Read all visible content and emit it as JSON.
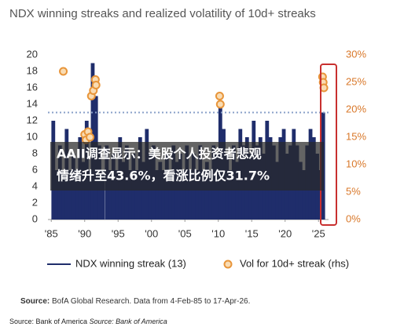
{
  "chart_data": {
    "type": "bar-scatter",
    "title": "NDX winning streaks and realized volatility of 10d+ streaks",
    "xlim": [
      1984.5,
      2026.5
    ],
    "xticks": [
      {
        "value": 1985,
        "label": "'85"
      },
      {
        "value": 1990,
        "label": "'90"
      },
      {
        "value": 1995,
        "label": "'95"
      },
      {
        "value": 2000,
        "label": "'00"
      },
      {
        "value": 2005,
        "label": "'05"
      },
      {
        "value": 2010,
        "label": "'10"
      },
      {
        "value": 2015,
        "label": "'15"
      },
      {
        "value": 2020,
        "label": "'20"
      },
      {
        "value": 2025,
        "label": "'25"
      }
    ],
    "ylim": [
      0,
      20
    ],
    "yticks": [
      0,
      2,
      4,
      6,
      8,
      10,
      12,
      14,
      16,
      18,
      20
    ],
    "y2lim": [
      0,
      30
    ],
    "y2ticks": [
      {
        "value": 0,
        "label": "0%"
      },
      {
        "value": 5,
        "label": "5%"
      },
      {
        "value": 10,
        "label": "10%"
      },
      {
        "value": 15,
        "label": "15%"
      },
      {
        "value": 20,
        "label": "20%"
      },
      {
        "value": 25,
        "label": "25%"
      },
      {
        "value": 30,
        "label": "30%"
      }
    ],
    "reference_line": 13,
    "series": [
      {
        "name": "NDX winning streak (13)",
        "color": "#1f2d6b",
        "kind": "bar",
        "x": [
          1985.3,
          1985.8,
          1986.3,
          1986.8,
          1987.3,
          1987.8,
          1988.3,
          1988.8,
          1989.3,
          1989.8,
          1990.3,
          1990.8,
          1991.2,
          1991.7,
          1992.2,
          1992.7,
          1993.3,
          1993.8,
          1994.3,
          1994.8,
          1995.3,
          1995.8,
          1996.3,
          1996.8,
          1997.3,
          1997.8,
          1998.3,
          1998.8,
          1999.3,
          1999.8,
          2000.3,
          2000.8,
          2001.3,
          2001.8,
          2002.3,
          2002.8,
          2003.3,
          2003.8,
          2004.3,
          2004.8,
          2005.3,
          2005.8,
          2006.3,
          2006.8,
          2007.3,
          2007.8,
          2008.3,
          2008.8,
          2009.3,
          2009.8,
          2010.3,
          2010.8,
          2011.3,
          2011.8,
          2012.3,
          2012.8,
          2013.3,
          2013.8,
          2014.3,
          2014.8,
          2015.3,
          2015.8,
          2016.3,
          2016.8,
          2017.3,
          2017.8,
          2018.3,
          2018.8,
          2019.3,
          2019.8,
          2020.3,
          2020.8,
          2021.3,
          2021.8,
          2022.3,
          2022.8,
          2023.3,
          2023.8,
          2024.3,
          2024.8,
          2025.3,
          2025.7
        ],
        "values": [
          12,
          6,
          9,
          6,
          11,
          6,
          8,
          6,
          10,
          7,
          12,
          6,
          19,
          15,
          9,
          6,
          9,
          6,
          8,
          6,
          10,
          7,
          9,
          6,
          8,
          6,
          10,
          7,
          11,
          8,
          9,
          6,
          7,
          6,
          8,
          6,
          9,
          7,
          8,
          6,
          9,
          6,
          8,
          6,
          9,
          6,
          7,
          6,
          9,
          8,
          14,
          11,
          8,
          6,
          9,
          7,
          11,
          9,
          10,
          8,
          12,
          9,
          10,
          8,
          12,
          10,
          9,
          7,
          10,
          11,
          8,
          9,
          11,
          9,
          7,
          6,
          9,
          11,
          10,
          8,
          6,
          13
        ]
      },
      {
        "name": "Vol for 10d+ streak (rhs)",
        "color": "#e8953a",
        "kind": "scatter",
        "axis": "y2",
        "x": [
          1986.8,
          1990.0,
          1990.2,
          1990.5,
          1990.8,
          1991.0,
          1991.3,
          1991.6,
          1991.7,
          2010.2,
          2010.3,
          2025.6,
          2025.7,
          2025.8
        ],
        "values": [
          27,
          15.5,
          14.5,
          16,
          15,
          22.5,
          23.5,
          25.5,
          24.5,
          22.5,
          21,
          26,
          25,
          24
        ]
      }
    ],
    "source_label": "Source:",
    "source": "BofA Global Research. Data from 4-Feb-85 to 17-Apr-26."
  },
  "overlay": {
    "lines": [
      "AAII调查显示：美股个人投资者悲观",
      "情绪升至43.6%，看涨比例仅31.7%"
    ]
  },
  "footer": {
    "label": "Source: Bank of America",
    "italic": "Source: Bank of America"
  }
}
